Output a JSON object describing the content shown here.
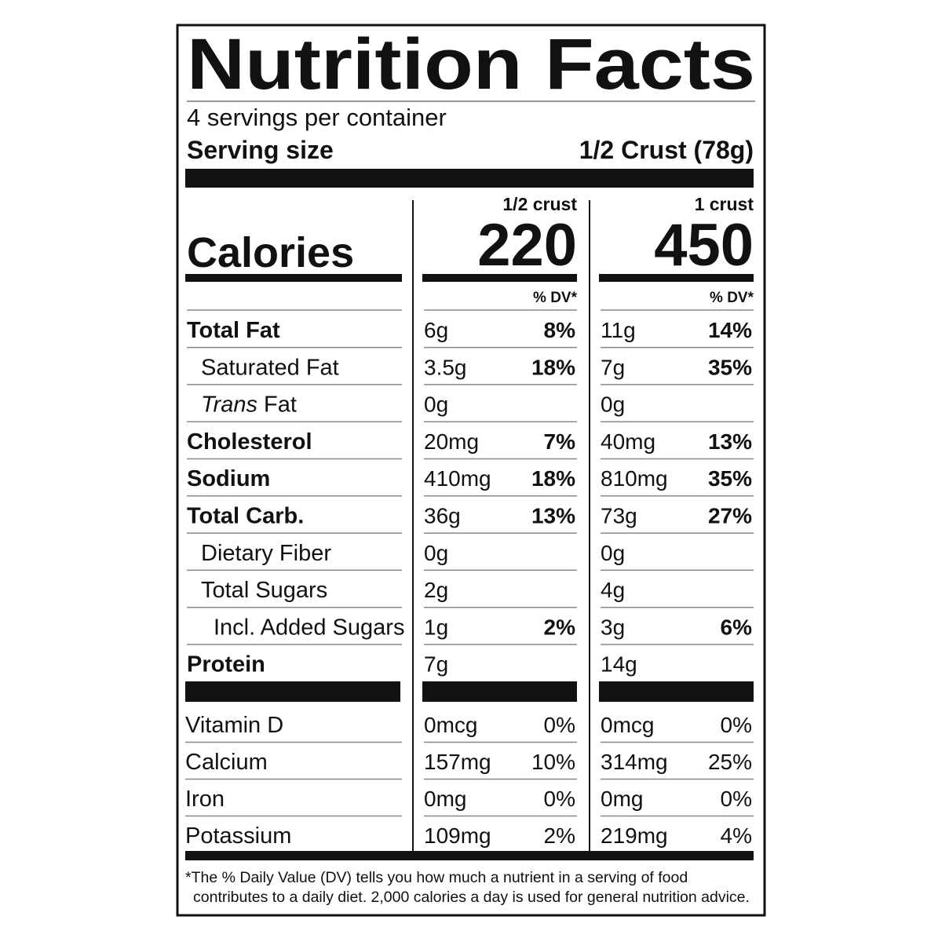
{
  "title": "Nutrition Facts",
  "servings": "4 servings per container",
  "serving_size": {
    "label": "Serving size",
    "value": "1/2 Crust (78g)"
  },
  "calories_label": "Calories",
  "columns": [
    {
      "header": "1/2 crust",
      "calories": 220,
      "dv_header": "% DV*"
    },
    {
      "header": "1 crust",
      "calories": 450,
      "dv_header": "% DV*"
    }
  ],
  "nutrients": [
    {
      "name": "Total Fat",
      "bold": true,
      "indent": 0,
      "values": [
        {
          "amount": "6g",
          "dv": "8%"
        },
        {
          "amount": "11g",
          "dv": "14%"
        }
      ]
    },
    {
      "name": "Saturated Fat",
      "bold": false,
      "indent": 1,
      "values": [
        {
          "amount": "3.5g",
          "dv": "18%"
        },
        {
          "amount": "7g",
          "dv": "35%"
        }
      ]
    },
    {
      "name_italic": "Trans",
      "name": "Fat",
      "bold": false,
      "indent": 1,
      "values": [
        {
          "amount": "0g"
        },
        {
          "amount": "0g"
        }
      ]
    },
    {
      "name": "Cholesterol",
      "bold": true,
      "indent": 0,
      "values": [
        {
          "amount": "20mg",
          "dv": "7%"
        },
        {
          "amount": "40mg",
          "dv": "13%"
        }
      ]
    },
    {
      "name": "Sodium",
      "bold": true,
      "indent": 0,
      "values": [
        {
          "amount": "410mg",
          "dv": "18%"
        },
        {
          "amount": "810mg",
          "dv": "35%"
        }
      ]
    },
    {
      "name": "Total Carb.",
      "bold": true,
      "indent": 0,
      "values": [
        {
          "amount": "36g",
          "dv": "13%"
        },
        {
          "amount": "73g",
          "dv": "27%"
        }
      ]
    },
    {
      "name": "Dietary Fiber",
      "bold": false,
      "indent": 1,
      "values": [
        {
          "amount": "0g"
        },
        {
          "amount": "0g"
        }
      ]
    },
    {
      "name": "Total Sugars",
      "bold": false,
      "indent": 1,
      "values": [
        {
          "amount": "2g"
        },
        {
          "amount": "4g"
        }
      ]
    },
    {
      "name": "Incl. Added Sugars",
      "bold": false,
      "indent": 2,
      "values": [
        {
          "amount": "1g",
          "dv": "2%"
        },
        {
          "amount": "3g",
          "dv": "6%"
        }
      ]
    },
    {
      "name": "Protein",
      "bold": true,
      "indent": 0,
      "values": [
        {
          "amount": "7g"
        },
        {
          "amount": "14g"
        }
      ]
    }
  ],
  "vitamins": [
    {
      "name": "Vitamin D",
      "values": [
        {
          "amount": "0mcg",
          "dv": "0%"
        },
        {
          "amount": "0mcg",
          "dv": "0%"
        }
      ]
    },
    {
      "name": "Calcium",
      "values": [
        {
          "amount": "157mg",
          "dv": "10%"
        },
        {
          "amount": "314mg",
          "dv": "25%"
        }
      ]
    },
    {
      "name": "Iron",
      "values": [
        {
          "amount": "0mg",
          "dv": "0%"
        },
        {
          "amount": "0mg",
          "dv": "0%"
        }
      ]
    },
    {
      "name": "Potassium",
      "values": [
        {
          "amount": "109mg",
          "dv": "2%"
        },
        {
          "amount": "219mg",
          "dv": "4%"
        }
      ]
    }
  ],
  "footnote": [
    "*The % Daily Value (DV) tells you how much a nutrient in a serving of food",
    "contributes to a daily diet. 2,000 calories a day is used for general nutrition advice."
  ]
}
